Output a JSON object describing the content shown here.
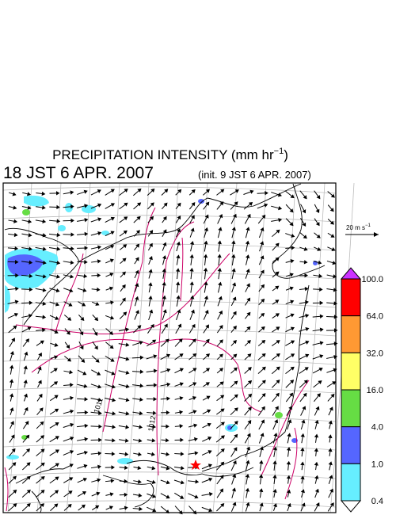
{
  "header": {
    "title": "PRECIPITATION INTENSITY (mm hr",
    "title_sup": "−1",
    "title_end": ")",
    "valid_time": "18 JST 6 APR. 2007",
    "init_time": "(init. 9 JST 6 APR. 2007)"
  },
  "map": {
    "isobar_labels": [
      "1011",
      "1012"
    ]
  },
  "wind_scale": {
    "label": "20 m s",
    "label_sup": "−1"
  },
  "colorbar": {
    "labels": [
      "100.0",
      "64.0",
      "32.0",
      "16.0",
      "4.0",
      "1.0",
      "0.4"
    ],
    "colors": [
      "#ff0000",
      "#ff9933",
      "#ffff66",
      "#66dd44",
      "#5566ff",
      "#66eeff"
    ],
    "over_color": "#cc33ff",
    "under_color": "#ffffff"
  }
}
